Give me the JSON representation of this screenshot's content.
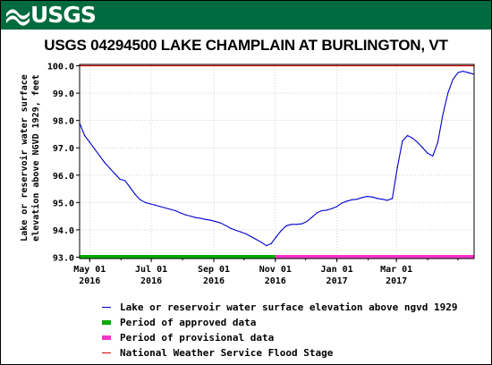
{
  "header": {
    "logo_text": "USGS",
    "brand_color": "#006b3f"
  },
  "chart_data": {
    "type": "line",
    "title": "USGS 04294500 LAKE CHAMPLAIN AT BURLINGTON, VT",
    "ylabel": "Lake or reservoir water surface\nelevation above NGVD 1929, feet",
    "xlabel": "",
    "ylim": [
      92.95,
      100.05
    ],
    "xlim": [
      "2016-04-21",
      "2017-05-17"
    ],
    "yticks": [
      "93.0",
      "94.0",
      "95.0",
      "96.0",
      "97.0",
      "98.0",
      "99.0",
      "100.0"
    ],
    "xticks": [
      {
        "date": "2016-05-01",
        "month": "May 01",
        "year": "2016"
      },
      {
        "date": "2016-07-01",
        "month": "Jul 01",
        "year": "2016"
      },
      {
        "date": "2016-09-01",
        "month": "Sep 01",
        "year": "2016"
      },
      {
        "date": "2016-11-01",
        "month": "Nov 01",
        "year": "2016"
      },
      {
        "date": "2017-01-01",
        "month": "Jan 01",
        "year": "2017"
      },
      {
        "date": "2017-03-01",
        "month": "Mar 01",
        "year": "2017"
      }
    ],
    "grid": true,
    "legend_position": "bottom",
    "series": [
      {
        "name": "Lake or reservoir water surface elevation above ngvd 1929",
        "color": "#0000cc",
        "x": [
          "2016-04-21",
          "2016-04-26",
          "2016-05-01",
          "2016-05-06",
          "2016-05-11",
          "2016-05-16",
          "2016-05-21",
          "2016-05-26",
          "2016-05-31",
          "2016-06-05",
          "2016-06-10",
          "2016-06-15",
          "2016-06-20",
          "2016-06-25",
          "2016-06-30",
          "2016-07-05",
          "2016-07-10",
          "2016-07-15",
          "2016-07-20",
          "2016-07-25",
          "2016-07-30",
          "2016-08-04",
          "2016-08-09",
          "2016-08-14",
          "2016-08-19",
          "2016-08-24",
          "2016-08-29",
          "2016-09-03",
          "2016-09-08",
          "2016-09-13",
          "2016-09-18",
          "2016-09-23",
          "2016-09-28",
          "2016-10-03",
          "2016-10-08",
          "2016-10-13",
          "2016-10-18",
          "2016-10-23",
          "2016-10-28",
          "2016-11-02",
          "2016-11-07",
          "2016-11-12",
          "2016-11-17",
          "2016-11-22",
          "2016-11-27",
          "2016-12-02",
          "2016-12-07",
          "2016-12-12",
          "2016-12-17",
          "2016-12-22",
          "2016-12-27",
          "2017-01-01",
          "2017-01-06",
          "2017-01-11",
          "2017-01-16",
          "2017-01-21",
          "2017-01-26",
          "2017-01-31",
          "2017-02-05",
          "2017-02-10",
          "2017-02-15",
          "2017-02-20",
          "2017-02-25",
          "2017-03-02",
          "2017-03-07",
          "2017-03-12",
          "2017-03-17",
          "2017-03-22",
          "2017-03-27",
          "2017-04-01",
          "2017-04-06",
          "2017-04-11",
          "2017-04-16",
          "2017-04-21",
          "2017-04-26",
          "2017-05-01",
          "2017-05-06",
          "2017-05-11",
          "2017-05-16"
        ],
        "y": [
          97.9,
          97.45,
          97.2,
          96.95,
          96.7,
          96.45,
          96.25,
          96.05,
          95.85,
          95.8,
          95.55,
          95.3,
          95.1,
          95.0,
          94.95,
          94.9,
          94.85,
          94.8,
          94.75,
          94.7,
          94.62,
          94.55,
          94.5,
          94.45,
          94.42,
          94.38,
          94.35,
          94.3,
          94.25,
          94.15,
          94.05,
          93.98,
          93.92,
          93.85,
          93.75,
          93.65,
          93.55,
          93.42,
          93.5,
          93.75,
          93.98,
          94.15,
          94.2,
          94.2,
          94.22,
          94.3,
          94.45,
          94.62,
          94.7,
          94.72,
          94.78,
          94.85,
          94.98,
          95.05,
          95.1,
          95.12,
          95.18,
          95.22,
          95.2,
          95.15,
          95.12,
          95.08,
          95.15,
          96.3,
          97.25,
          97.45,
          97.35,
          97.2,
          97.0,
          96.8,
          96.7,
          97.2,
          98.2,
          99.0,
          99.5,
          99.75,
          99.8,
          99.75,
          99.7
        ]
      }
    ],
    "bands": [
      {
        "name": "Period of approved data",
        "color": "#00aa00",
        "start": "2016-04-21",
        "end": "2016-11-01",
        "y": 93.0
      },
      {
        "name": "Period of provisional data",
        "color": "#ff33cc",
        "start": "2016-11-01",
        "end": "2017-05-17",
        "y": 93.0
      }
    ],
    "reference_lines": [
      {
        "name": "National Weather Service Flood Stage",
        "color": "#cc0000",
        "y": 100.0
      }
    ]
  }
}
